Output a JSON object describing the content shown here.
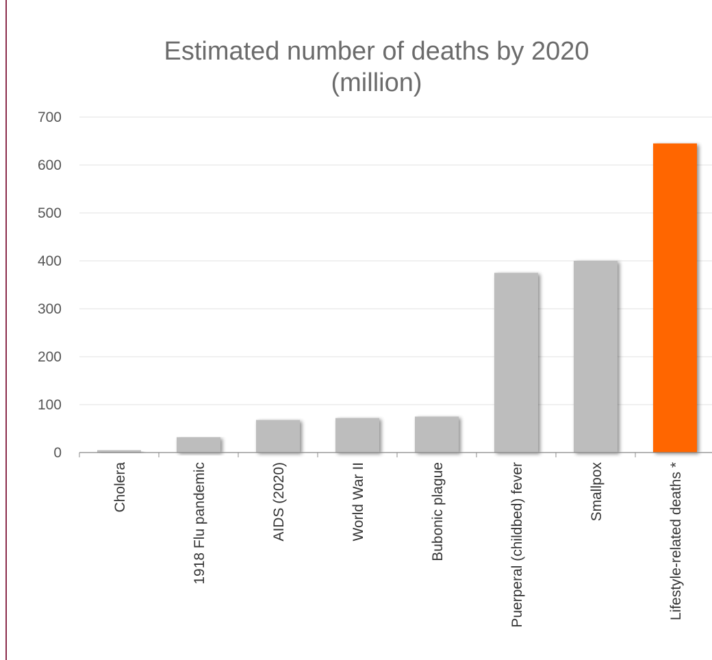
{
  "chart_data": {
    "type": "bar",
    "title_line1": "Estimated number of deaths by 2020",
    "title_line2": "(million)",
    "xlabel": "",
    "ylabel": "",
    "ylim": [
      0,
      700
    ],
    "yticks": [
      0,
      100,
      200,
      300,
      400,
      500,
      600,
      700
    ],
    "grid": true,
    "legend": "none",
    "categories": [
      "Cholera",
      "1918 Flu pandemic",
      "AIDS (2020)",
      "World War II",
      "Bubonic plague",
      "Puerperal (childbed) fever",
      "Smallpox",
      "Lifestyle-related deaths *"
    ],
    "values": [
      5,
      32,
      68,
      72,
      75,
      375,
      400,
      645
    ],
    "bar_colors": [
      "#bdbdbd",
      "#bdbdbd",
      "#bdbdbd",
      "#bdbdbd",
      "#bdbdbd",
      "#bdbdbd",
      "#bdbdbd",
      "#ff6600"
    ]
  }
}
